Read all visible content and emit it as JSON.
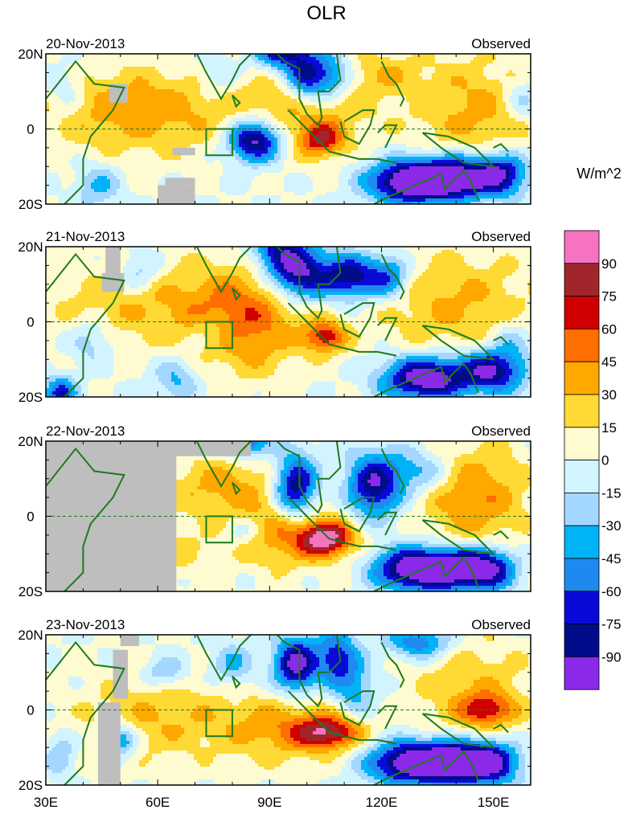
{
  "chart_data": {
    "type": "heatmap",
    "title": "OLR",
    "units_label": "W/m^2",
    "panel_tag": "Observed",
    "x_ticks": [
      "30E",
      "60E",
      "90E",
      "120E",
      "150E"
    ],
    "x_tick_values": [
      30,
      60,
      90,
      120,
      150
    ],
    "y_ticks": [
      "20N",
      "0",
      "20S"
    ],
    "y_tick_values": [
      20,
      0,
      -20
    ],
    "lon_range": [
      30,
      160
    ],
    "lat_range": [
      -20,
      20
    ],
    "box_region": {
      "lon": [
        73,
        80
      ],
      "lat": [
        -7,
        0
      ]
    },
    "panels": [
      {
        "date": "20-Nov-2013"
      },
      {
        "date": "21-Nov-2013"
      },
      {
        "date": "22-Nov-2013"
      },
      {
        "date": "23-Nov-2013"
      }
    ],
    "colorbar": {
      "labels": [
        "90",
        "75",
        "60",
        "45",
        "30",
        "15",
        "0",
        "-15",
        "-30",
        "-45",
        "-60",
        "-75",
        "-90"
      ],
      "colors": [
        "#f573c1",
        "#a1262b",
        "#d00000",
        "#ff6e00",
        "#ffa800",
        "#ffd934",
        "#fffbd0",
        "#d2f4ff",
        "#a4d7ff",
        "#00b2f6",
        "#1e8af0",
        "#0a0ad8",
        "#000c8a",
        "#8a2ae8"
      ]
    },
    "missing_color": "#bebebe"
  }
}
